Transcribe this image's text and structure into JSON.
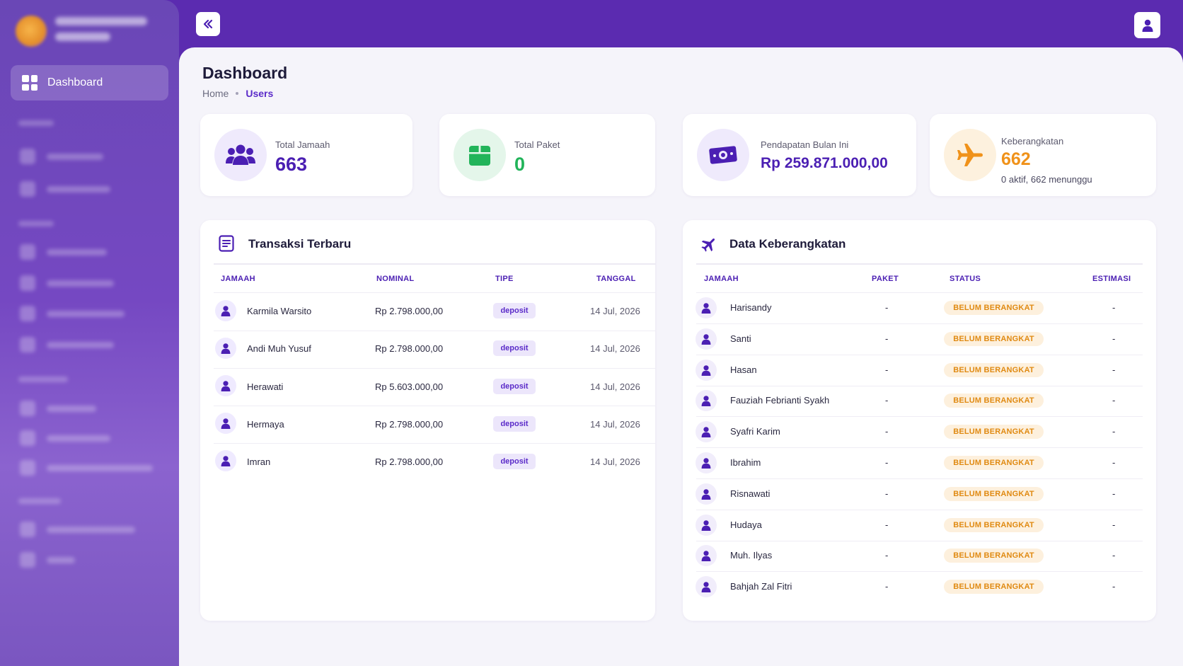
{
  "sidebar": {
    "active_item": "Dashboard"
  },
  "page": {
    "title": "Dashboard",
    "breadcrumb": [
      "Home",
      "Users"
    ]
  },
  "stats": [
    {
      "label": "Total Jamaah",
      "value": "663",
      "color": "#4b1fb3",
      "icon": "users-icon"
    },
    {
      "label": "Total Paket",
      "value": "0",
      "color": "#22b45a",
      "icon": "box-icon"
    },
    {
      "label": "Pendapatan Bulan Ini",
      "value": "Rp 259.871.000,00",
      "color": "#4b1fb3",
      "icon": "money-icon"
    },
    {
      "label": "Keberangkatan",
      "value": "662",
      "sub": "0 aktif, 662 menunggu",
      "color": "#f0921a",
      "icon": "airplane-icon"
    }
  ],
  "transaksi": {
    "title": "Transaksi Terbaru",
    "columns": [
      "JAMAAH",
      "NOMINAL",
      "TIPE",
      "TANGGAL"
    ],
    "rows": [
      {
        "jamaah": "Karmila Warsito",
        "nominal": "Rp 2.798.000,00",
        "tipe": "deposit",
        "tanggal": "14 Jul, 2026"
      },
      {
        "jamaah": "Andi Muh Yusuf",
        "nominal": "Rp 2.798.000,00",
        "tipe": "deposit",
        "tanggal": "14 Jul, 2026"
      },
      {
        "jamaah": "Herawati",
        "nominal": "Rp 5.603.000,00",
        "tipe": "deposit",
        "tanggal": "14 Jul, 2026"
      },
      {
        "jamaah": "Hermaya",
        "nominal": "Rp 2.798.000,00",
        "tipe": "deposit",
        "tanggal": "14 Jul, 2026"
      },
      {
        "jamaah": "Imran",
        "nominal": "Rp 2.798.000,00",
        "tipe": "deposit",
        "tanggal": "14 Jul, 2026"
      }
    ]
  },
  "keberangkatan": {
    "title": "Data Keberangkatan",
    "columns": [
      "JAMAAH",
      "PAKET",
      "STATUS",
      "ESTIMASI"
    ],
    "rows": [
      {
        "jamaah": "Harisandy",
        "paket": "-",
        "status": "BELUM BERANGKAT",
        "estimasi": "-"
      },
      {
        "jamaah": "Santi",
        "paket": "-",
        "status": "BELUM BERANGKAT",
        "estimasi": "-"
      },
      {
        "jamaah": "Hasan",
        "paket": "-",
        "status": "BELUM BERANGKAT",
        "estimasi": "-"
      },
      {
        "jamaah": "Fauziah Febrianti Syakh",
        "paket": "-",
        "status": "BELUM BERANGKAT",
        "estimasi": "-"
      },
      {
        "jamaah": "Syafri Karim",
        "paket": "-",
        "status": "BELUM BERANGKAT",
        "estimasi": "-"
      },
      {
        "jamaah": "Ibrahim",
        "paket": "-",
        "status": "BELUM BERANGKAT",
        "estimasi": "-"
      },
      {
        "jamaah": "Risnawati",
        "paket": "-",
        "status": "BELUM BERANGKAT",
        "estimasi": "-"
      },
      {
        "jamaah": "Hudaya",
        "paket": "-",
        "status": "BELUM BERANGKAT",
        "estimasi": "-"
      },
      {
        "jamaah": "Muh. Ilyas",
        "paket": "-",
        "status": "BELUM BERANGKAT",
        "estimasi": "-"
      },
      {
        "jamaah": "Bahjah Zal Fitri",
        "paket": "-",
        "status": "BELUM BERANGKAT",
        "estimasi": "-"
      }
    ]
  },
  "colors": {
    "primary": "#4b1fb3",
    "accent_orange": "#f0921a",
    "accent_green": "#22b45a"
  }
}
